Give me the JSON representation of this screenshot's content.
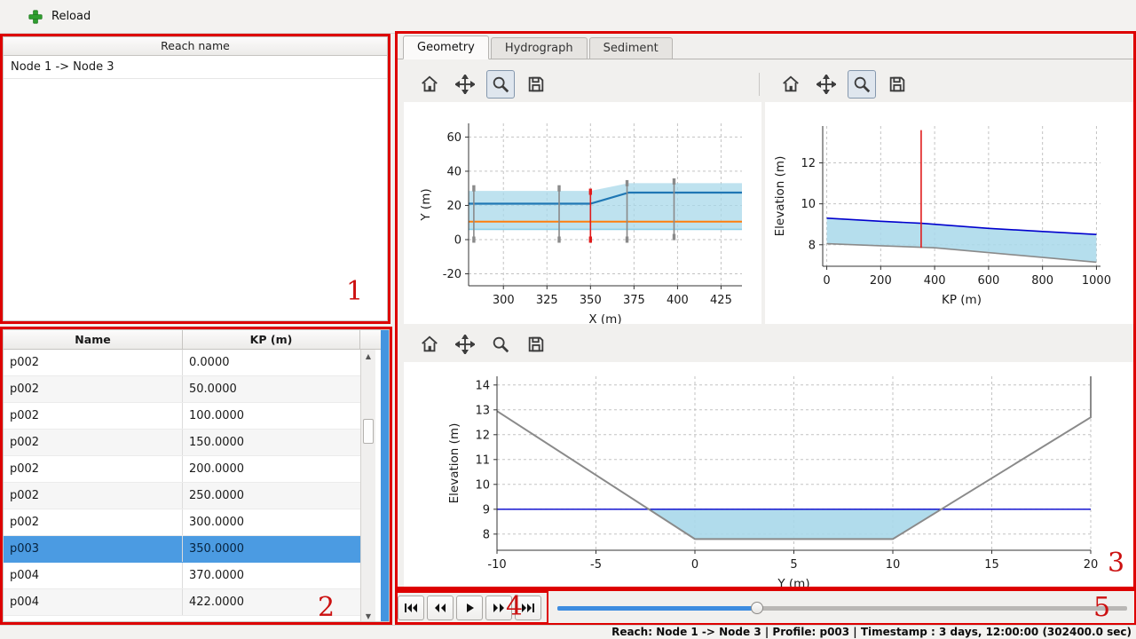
{
  "window": {
    "reload_label": "Reload"
  },
  "reach_list": {
    "header": "Reach name",
    "items": [
      "Node 1 -> Node 3"
    ]
  },
  "profile_table": {
    "columns": [
      "Name",
      "KP (m)"
    ],
    "rows": [
      [
        "p002",
        "0.0000"
      ],
      [
        "p002",
        "50.0000"
      ],
      [
        "p002",
        "100.0000"
      ],
      [
        "p002",
        "150.0000"
      ],
      [
        "p002",
        "200.0000"
      ],
      [
        "p002",
        "250.0000"
      ],
      [
        "p002",
        "300.0000"
      ],
      [
        "p003",
        "350.0000"
      ],
      [
        "p004",
        "370.0000"
      ],
      [
        "p004",
        "422.0000"
      ]
    ],
    "selected_index": 7
  },
  "tabs": [
    {
      "label": "Geometry",
      "active": true
    },
    {
      "label": "Hydrograph",
      "active": false
    },
    {
      "label": "Sediment",
      "active": false
    }
  ],
  "player": {
    "progress": 0.35,
    "buttons": [
      "skip-to-start",
      "rewind",
      "play",
      "fast-forward",
      "skip-to-end"
    ]
  },
  "statusbar": {
    "text": "Reach: Node 1 -> Node 3 | Profile: p003 | Timestamp : 3 days, 12:00:00 (302400.0 sec)"
  },
  "annotations": {
    "labels": [
      "1",
      "2",
      "3",
      "4",
      "5"
    ],
    "color": "#dd0000"
  },
  "colors": {
    "selection_bg": "#4b9be2",
    "slider_fill": "#3d8ce0",
    "splitter_blue": "#4495e0",
    "annotation_red": "#dd0000",
    "water_fill": "#a8d8ea",
    "water_line": "#0000cd",
    "bed_line": "#8a8a8a",
    "selected_profile_line": "#e01b1b"
  },
  "chart_data": [
    {
      "id": "plan-view",
      "type": "line",
      "xlabel": "X (m)",
      "ylabel": "Y (m)",
      "xlim": [
        280,
        437
      ],
      "ylim": [
        -27,
        68
      ],
      "xticks": [
        300,
        325,
        350,
        375,
        400,
        425
      ],
      "yticks": [
        -20,
        0,
        20,
        40,
        60
      ],
      "grid": true,
      "fills": [
        {
          "name": "channel-band",
          "color": "#a8d8ea",
          "opacity": 0.75,
          "points": [
            [
              280,
              28.5
            ],
            [
              350,
              28.5
            ],
            [
              372,
              33
            ],
            [
              437,
              33
            ],
            [
              437,
              6
            ],
            [
              280,
              6
            ]
          ]
        }
      ],
      "series": [
        {
          "name": "bank-line",
          "color": "#1f77b4",
          "width": 2.2,
          "points": [
            [
              280,
              21
            ],
            [
              350,
              21
            ],
            [
              372,
              27.5
            ],
            [
              437,
              27.5
            ]
          ]
        },
        {
          "name": "reference-line",
          "color": "#ff7f0e",
          "width": 2,
          "points": [
            [
              280,
              10.5
            ],
            [
              437,
              10.5
            ]
          ]
        },
        {
          "name": "band-lower-edge",
          "color": "#8ecfe8",
          "width": 1.6,
          "points": [
            [
              280,
              6
            ],
            [
              437,
              6
            ]
          ]
        }
      ],
      "vlines": [
        {
          "name": "profile-marker-1",
          "x": 283,
          "y0": 0,
          "y1": 30,
          "color": "#8a8a8a",
          "marker": true
        },
        {
          "name": "profile-marker-2",
          "x": 332,
          "y0": 0,
          "y1": 30,
          "color": "#8a8a8a",
          "marker": true
        },
        {
          "name": "selected-profile-marker",
          "x": 350,
          "y0": 0,
          "y1": 28,
          "color": "#e01b1b",
          "marker": true
        },
        {
          "name": "profile-marker-3",
          "x": 371,
          "y0": 0,
          "y1": 33,
          "color": "#8a8a8a",
          "marker": true
        },
        {
          "name": "profile-marker-4",
          "x": 398,
          "y0": 1.5,
          "y1": 34,
          "color": "#8a8a8a",
          "marker": true
        }
      ]
    },
    {
      "id": "long-profile",
      "type": "line",
      "xlabel": "KP (m)",
      "ylabel": "Elevation (m)",
      "xlim": [
        -15,
        1015
      ],
      "ylim": [
        6.95,
        13.8
      ],
      "xticks": [
        0,
        200,
        400,
        600,
        800,
        1000
      ],
      "yticks": [
        8,
        10,
        12
      ],
      "grid": true,
      "fills": [
        {
          "name": "water-body",
          "color": "#a8d8ea",
          "opacity": 0.85,
          "points": [
            [
              0,
              9.3
            ],
            [
              200,
              9.15
            ],
            [
              350,
              9.05
            ],
            [
              600,
              8.8
            ],
            [
              800,
              8.65
            ],
            [
              1000,
              8.5
            ],
            [
              1000,
              7.15
            ],
            [
              700,
              7.5
            ],
            [
              400,
              7.85
            ],
            [
              200,
              7.95
            ],
            [
              0,
              8.05
            ]
          ]
        }
      ],
      "series": [
        {
          "name": "water-level",
          "color": "#0000cd",
          "width": 1.6,
          "points": [
            [
              0,
              9.3
            ],
            [
              200,
              9.15
            ],
            [
              350,
              9.05
            ],
            [
              600,
              8.8
            ],
            [
              800,
              8.65
            ],
            [
              1000,
              8.5
            ]
          ]
        },
        {
          "name": "bed-level",
          "color": "#8a8a8a",
          "width": 1.6,
          "points": [
            [
              0,
              8.05
            ],
            [
              200,
              7.95
            ],
            [
              400,
              7.85
            ],
            [
              700,
              7.5
            ],
            [
              1000,
              7.15
            ]
          ]
        }
      ],
      "vlines": [
        {
          "name": "selected-profile-marker",
          "x": 350,
          "y0": 7.85,
          "y1": 13.6,
          "color": "#e01b1b",
          "marker": false
        }
      ]
    },
    {
      "id": "cross-section",
      "type": "line",
      "xlabel": "Y (m)",
      "ylabel": "Elevation (m)",
      "xlim": [
        -10,
        20
      ],
      "ylim": [
        7.35,
        14.35
      ],
      "xticks": [
        -10,
        -5,
        0,
        5,
        10,
        15,
        20
      ],
      "yticks": [
        8,
        9,
        10,
        11,
        12,
        13,
        14
      ],
      "grid": true,
      "fills": [
        {
          "name": "water-area",
          "color": "#a8d8ea",
          "opacity": 0.9,
          "points": [
            [
              -2.35,
              9
            ],
            [
              0,
              7.8
            ],
            [
              10,
              7.8
            ],
            [
              12.45,
              9
            ]
          ]
        }
      ],
      "series": [
        {
          "name": "water-level",
          "color": "#0000cd",
          "width": 1.4,
          "points": [
            [
              -10,
              9
            ],
            [
              20,
              9
            ]
          ]
        },
        {
          "name": "bed-profile",
          "color": "#8a8a8a",
          "width": 2,
          "points": [
            [
              -10,
              12.95
            ],
            [
              0,
              7.8
            ],
            [
              10,
              7.8
            ],
            [
              20,
              12.7
            ],
            [
              20,
              14.35
            ]
          ]
        }
      ],
      "vlines": []
    }
  ]
}
